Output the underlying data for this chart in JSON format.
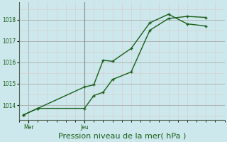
{
  "bg_color": "#cce8ec",
  "grid_color_major": "#aaaaaa",
  "grid_color_minor": "#ddc8c8",
  "line_color": "#1a5e1a",
  "xlabel": "Pression niveau de la mer( hPa )",
  "xlabel_fontsize": 8,
  "ytick_labels": [
    "1014",
    "1015",
    "1016",
    "1017",
    "1018"
  ],
  "yticks": [
    1014,
    1015,
    1016,
    1017,
    1018
  ],
  "ylim": [
    1013.3,
    1018.8
  ],
  "xlim": [
    0,
    22
  ],
  "xtick_labels": [
    "Mer",
    "Jeu"
  ],
  "xtick_positions": [
    1,
    7
  ],
  "vline_x": 7,
  "vline_color": "#888888",
  "series1_x": [
    0.5,
    2,
    7,
    8,
    9,
    10,
    12,
    14,
    16,
    18,
    20
  ],
  "series1_y": [
    1013.55,
    1013.85,
    1013.85,
    1014.45,
    1014.6,
    1015.2,
    1015.55,
    1017.5,
    1018.05,
    1018.15,
    1018.1
  ],
  "series2_x": [
    0.5,
    2,
    7,
    8,
    9,
    10,
    12,
    14,
    16,
    18,
    20
  ],
  "series2_y": [
    1013.55,
    1013.85,
    1014.85,
    1014.95,
    1016.1,
    1016.05,
    1016.65,
    1017.85,
    1018.25,
    1017.8,
    1017.7
  ]
}
